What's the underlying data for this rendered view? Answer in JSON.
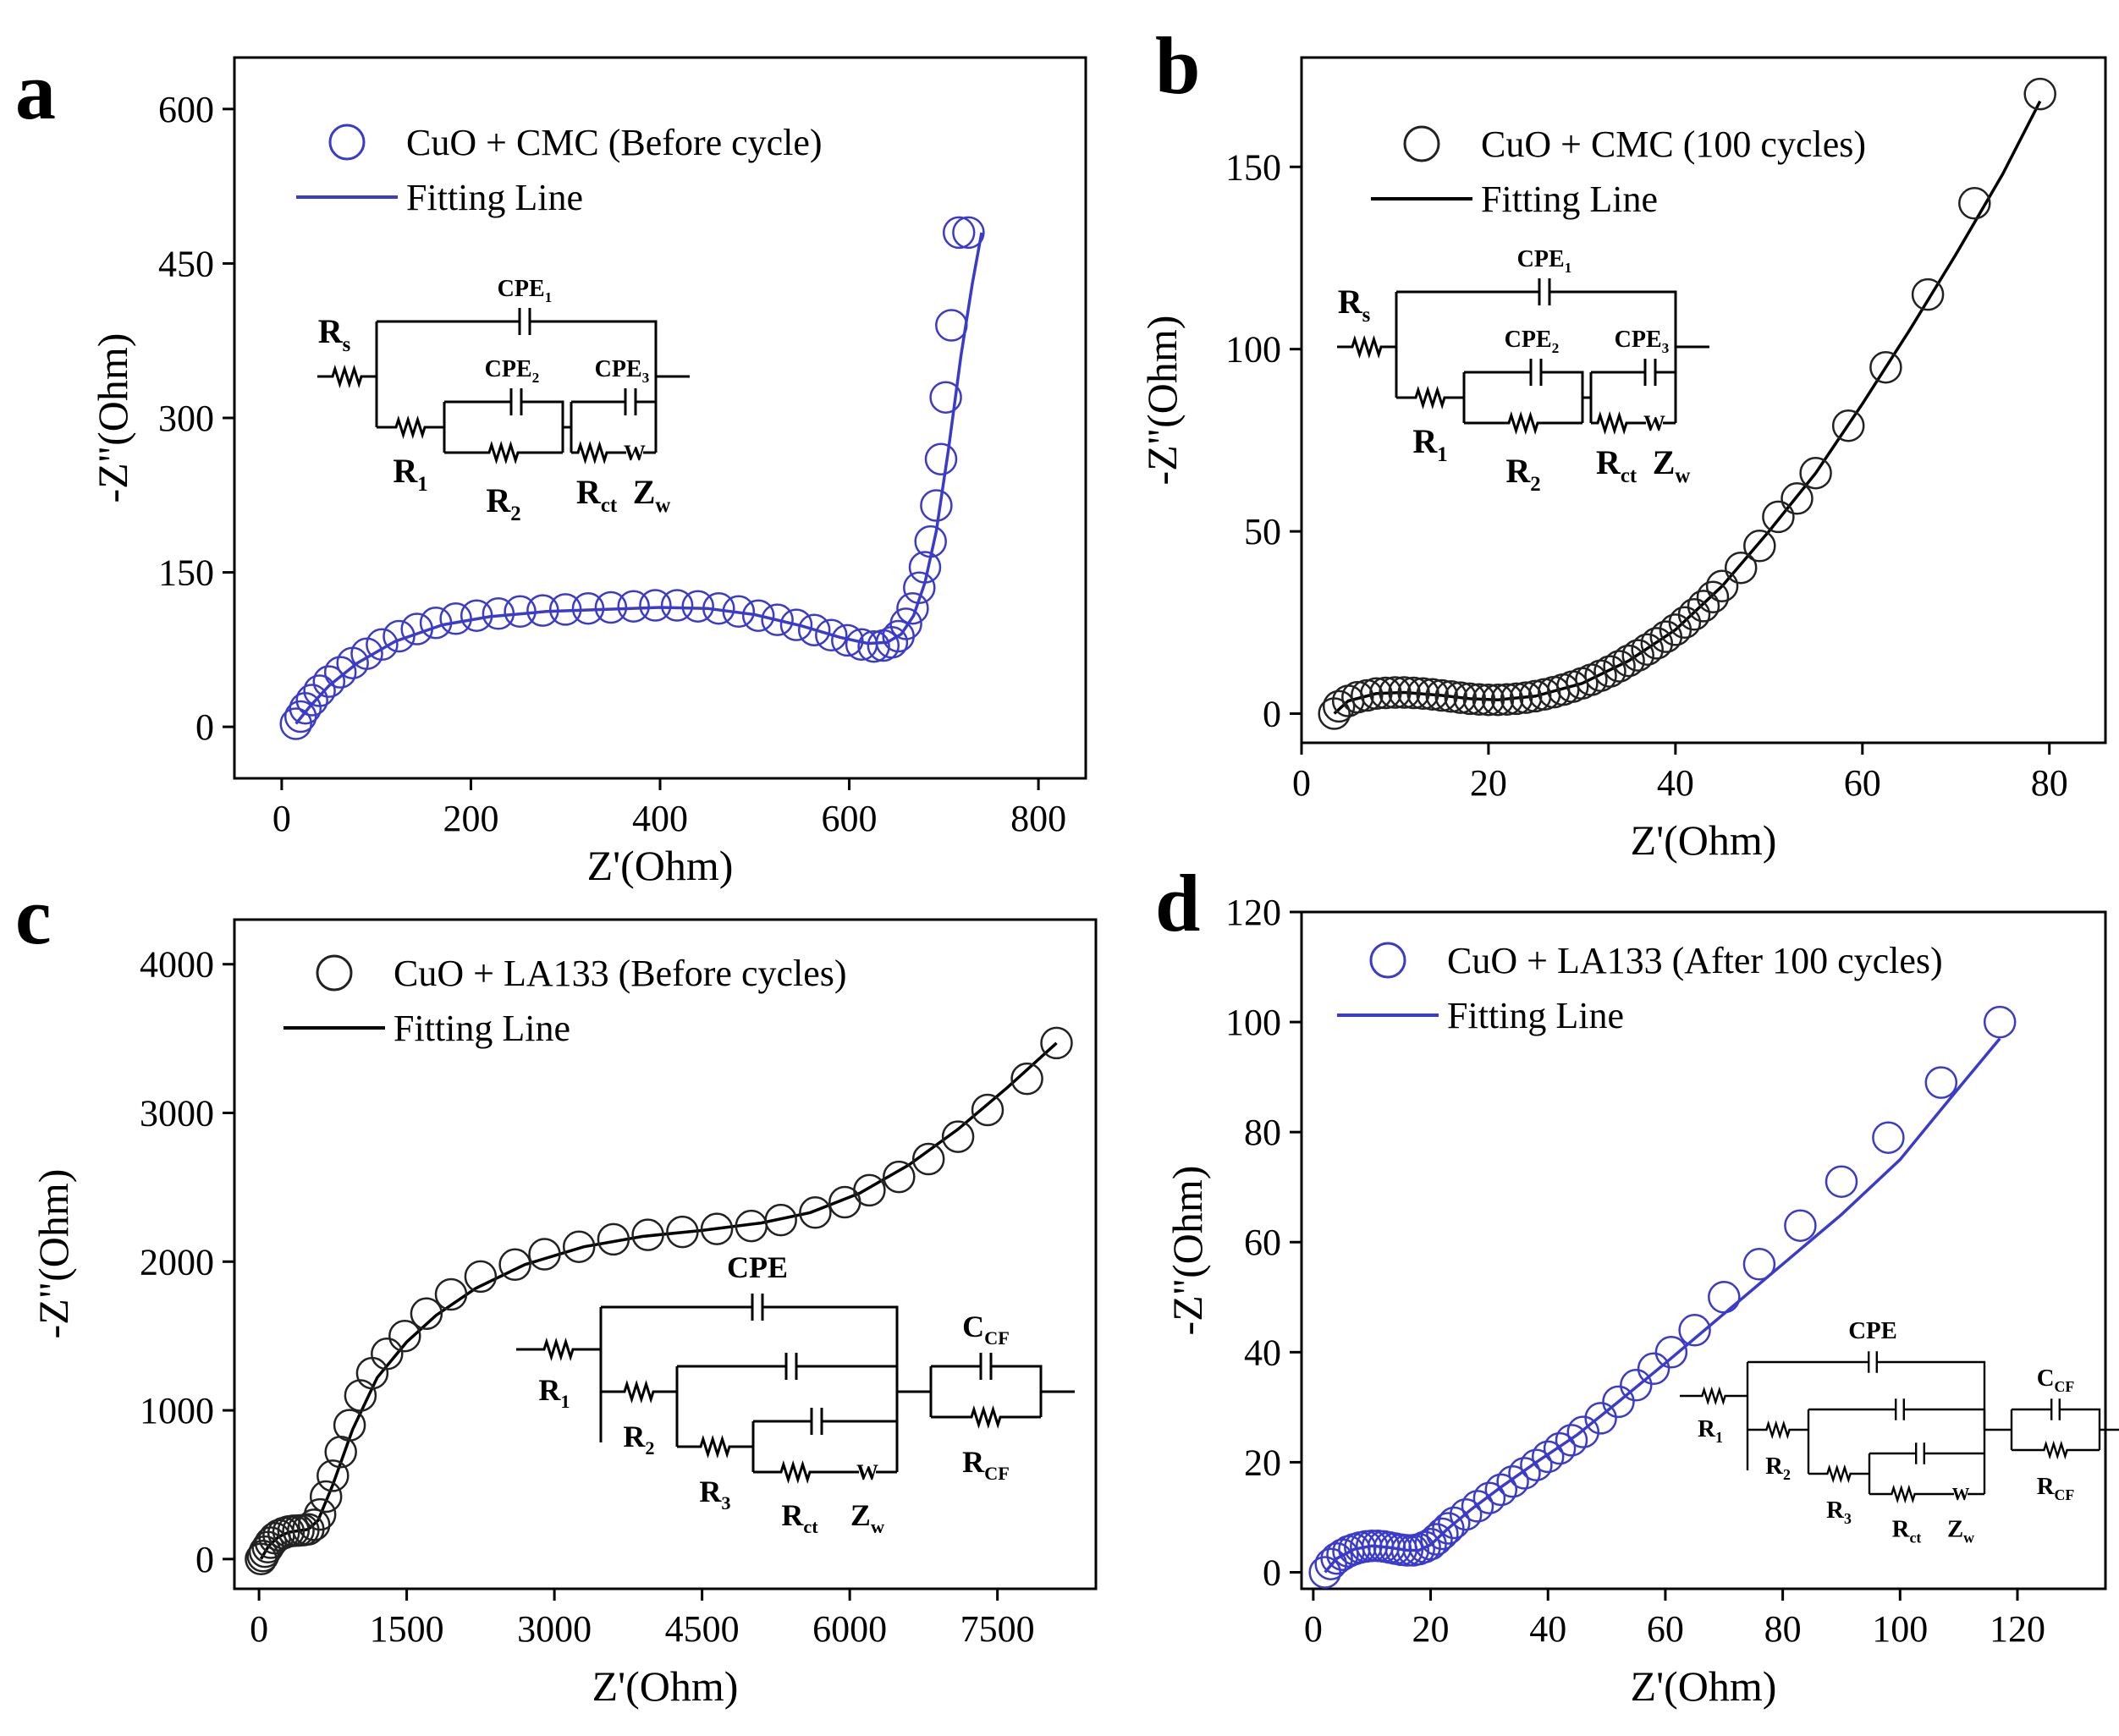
{
  "chart_data": [
    {
      "panel": "a",
      "type": "scatter",
      "title": "",
      "xlabel": "Z'(Ohm)",
      "ylabel": "-Z\"(Ohm)",
      "xlim": [
        -50,
        850
      ],
      "ylim": [
        -50,
        650
      ],
      "xticks": [
        "0",
        "200",
        "400",
        "600",
        "800"
      ],
      "yticks": [
        "0",
        "150",
        "300",
        "450",
        "600"
      ],
      "color": "#3a3acc",
      "legend": [
        "CuO + CMC (Before cycle)",
        "Fitting Line"
      ],
      "series": [
        {
          "name": "CuO + CMC (Before cycle)",
          "kind": "markers",
          "x": [
            15,
            20,
            25,
            32,
            40,
            50,
            62,
            75,
            90,
            106,
            124,
            143,
            163,
            184,
            206,
            229,
            252,
            276,
            300,
            324,
            348,
            372,
            395,
            418,
            440,
            462,
            483,
            504,
            524,
            544,
            563,
            581,
            598,
            613,
            626,
            636,
            645,
            652,
            660,
            667,
            674,
            680,
            686,
            692,
            697,
            702,
            708,
            716,
            726
          ],
          "y": [
            3,
            10,
            18,
            26,
            35,
            44,
            53,
            62,
            71,
            80,
            88,
            95,
            101,
            105,
            108,
            110,
            112,
            113,
            114,
            115,
            116,
            117,
            118,
            118,
            117,
            115,
            112,
            108,
            104,
            99,
            94,
            89,
            84,
            80,
            78,
            79,
            82,
            88,
            100,
            115,
            135,
            155,
            180,
            215,
            260,
            320,
            390,
            480,
            480
          ]
        },
        {
          "name": "Fitting Line",
          "kind": "line",
          "x": [
            15,
            30,
            50,
            80,
            120,
            170,
            220,
            280,
            340,
            400,
            450,
            500,
            550,
            590,
            620,
            640,
            655,
            668,
            680,
            692,
            705,
            718,
            730,
            740
          ],
          "y": [
            3,
            20,
            40,
            62,
            83,
            99,
            107,
            112,
            114,
            116,
            115,
            109,
            98,
            87,
            81,
            82,
            90,
            108,
            140,
            190,
            270,
            360,
            430,
            480
          ]
        }
      ],
      "inset": {
        "labels": [
          "CPE1",
          "CPE2",
          "CPE3",
          "Rs",
          "R1",
          "R2",
          "Rct",
          "Zw"
        ]
      }
    },
    {
      "panel": "b",
      "type": "scatter",
      "title": "",
      "xlabel": "Z'(Ohm)",
      "ylabel": "-Z\"(Ohm)",
      "xlim": [
        0,
        86
      ],
      "ylim": [
        -8,
        180
      ],
      "xticks": [
        "0",
        "20",
        "40",
        "60",
        "80"
      ],
      "yticks": [
        "0",
        "50",
        "100",
        "150"
      ],
      "color": "#000000",
      "legend": [
        "CuO + CMC (100 cycles)",
        "Fitting Line"
      ],
      "series": [
        {
          "name": "CuO + CMC (100 cycles)",
          "kind": "markers",
          "x": [
            3.5,
            4,
            5,
            6,
            7,
            8,
            9,
            10,
            11,
            12,
            13,
            14,
            15,
            16,
            17,
            18,
            19,
            20,
            21,
            22,
            23,
            24,
            25,
            26,
            27,
            28,
            29,
            30,
            31,
            32,
            33,
            34,
            35,
            36,
            37,
            38,
            39,
            40,
            41,
            42,
            43,
            44,
            45,
            47,
            49,
            51,
            53,
            55,
            58.5,
            62.5,
            67,
            72,
            79
          ],
          "y": [
            0,
            2,
            3.5,
            4.5,
            5,
            5.5,
            5.7,
            5.8,
            5.8,
            5.7,
            5.5,
            5.3,
            5,
            4.7,
            4.4,
            4.1,
            3.9,
            3.8,
            3.8,
            3.9,
            4.1,
            4.4,
            4.8,
            5.3,
            5.9,
            6.6,
            7.4,
            8.3,
            9.3,
            10.4,
            11.6,
            13,
            14.5,
            16,
            17.6,
            19.3,
            21.1,
            23,
            25,
            27.2,
            29.5,
            32,
            35,
            40,
            46,
            54,
            59,
            66,
            79,
            95,
            115,
            140,
            170
          ]
        },
        {
          "name": "Fitting Line",
          "kind": "line",
          "x": [
            3.5,
            5,
            8,
            11,
            15,
            18,
            21,
            25,
            30,
            35,
            40,
            45,
            50,
            55,
            60,
            65,
            70,
            75,
            79
          ],
          "y": [
            0,
            3.5,
            5.5,
            5.8,
            5,
            4.1,
            3.8,
            4.8,
            8.3,
            14.5,
            23,
            35,
            50,
            66,
            85,
            105,
            126,
            148,
            168
          ]
        }
      ],
      "inset": {
        "labels": [
          "CPE1",
          "CPE2",
          "CPE3",
          "Rs",
          "R1",
          "R2",
          "Rct",
          "Zw"
        ]
      }
    },
    {
      "panel": "c",
      "type": "scatter",
      "title": "",
      "xlabel": "Z'(Ohm)",
      "ylabel": "-Z\"(Ohm)",
      "xlim": [
        -250,
        8500
      ],
      "ylim": [
        -200,
        4300
      ],
      "xticks": [
        "0",
        "1500",
        "3000",
        "4500",
        "6000",
        "7500"
      ],
      "yticks": [
        "0",
        "1000",
        "2000",
        "3000",
        "4000"
      ],
      "color": "#000000",
      "legend": [
        "CuO + LA133 (Before cycles)",
        "Fitting Line"
      ],
      "series": [
        {
          "name": "CuO + LA133 (Before cycles)",
          "kind": "markers",
          "x": [
            20,
            40,
            60,
            90,
            120,
            160,
            200,
            250,
            300,
            350,
            400,
            450,
            500,
            560,
            620,
            680,
            750,
            830,
            920,
            1030,
            1150,
            1300,
            1480,
            1700,
            1950,
            2250,
            2600,
            2900,
            3250,
            3600,
            3950,
            4300,
            4650,
            5000,
            5300,
            5650,
            5950,
            6200,
            6500,
            6800,
            7100,
            7400,
            7800,
            8100
          ],
          "y": [
            0,
            20,
            50,
            80,
            110,
            140,
            160,
            175,
            185,
            190,
            192,
            195,
            200,
            230,
            300,
            420,
            560,
            720,
            900,
            1100,
            1250,
            1380,
            1500,
            1650,
            1780,
            1900,
            1980,
            2050,
            2100,
            2150,
            2180,
            2200,
            2220,
            2240,
            2280,
            2330,
            2400,
            2480,
            2570,
            2690,
            2840,
            3020,
            3230,
            3470
          ]
        },
        {
          "name": "Fitting Line",
          "kind": "line",
          "x": [
            20,
            100,
            200,
            300,
            400,
            500,
            600,
            750,
            950,
            1200,
            1500,
            1800,
            2200,
            2700,
            3300,
            3900,
            4500,
            5100,
            5600,
            6100,
            6600,
            7100,
            7600,
            8100
          ],
          "y": [
            0,
            90,
            150,
            180,
            190,
            200,
            260,
            500,
            870,
            1220,
            1460,
            1640,
            1820,
            1980,
            2100,
            2170,
            2210,
            2260,
            2330,
            2460,
            2650,
            2890,
            3170,
            3470
          ]
        }
      ],
      "inset": {
        "labels": [
          "CPE",
          "CCF",
          "R1",
          "R2",
          "R3",
          "Rct",
          "Zw",
          "RCF"
        ]
      }
    },
    {
      "panel": "d",
      "type": "scatter",
      "title": "",
      "xlabel": "Z'(Ohm)",
      "ylabel": "-Z\"(Ohm)",
      "xlim": [
        -2,
        135
      ],
      "ylim": [
        -3,
        120
      ],
      "xticks": [
        "0",
        "20",
        "40",
        "60",
        "80",
        "100",
        "120"
      ],
      "yticks": [
        "0",
        "20",
        "40",
        "60",
        "80",
        "100",
        "120"
      ],
      "color": "#3a3acc",
      "legend": [
        "CuO + LA133 (After 100 cycles)",
        "Fitting Line"
      ],
      "series": [
        {
          "name": "CuO + LA133 (After 100 cycles)",
          "kind": "markers",
          "x": [
            2,
            3,
            4,
            5,
            6,
            7,
            8,
            9,
            10,
            11,
            12,
            13,
            14,
            15,
            16,
            17,
            18,
            19,
            20,
            21,
            22,
            23,
            24,
            26,
            28,
            30,
            32,
            34,
            36,
            38,
            40,
            42,
            44,
            46,
            49,
            52,
            55,
            58,
            61,
            65,
            70,
            76,
            83,
            90,
            98,
            107,
            117
          ],
          "y": [
            0,
            1.5,
            2.5,
            3.2,
            3.8,
            4.2,
            4.5,
            4.7,
            4.8,
            4.8,
            4.7,
            4.5,
            4.3,
            4.1,
            4,
            4,
            4.2,
            4.6,
            5.1,
            6,
            7,
            8,
            9,
            10.5,
            12,
            13.5,
            15,
            16.5,
            18,
            19.5,
            21,
            22.5,
            24,
            25.5,
            28,
            31,
            34,
            37,
            40,
            44,
            50,
            56,
            63,
            71,
            79,
            89,
            100
          ]
        },
        {
          "name": "Fitting Line",
          "kind": "line",
          "x": [
            2,
            4,
            7,
            10,
            13,
            16,
            18,
            20,
            23,
            27,
            32,
            38,
            45,
            52,
            60,
            70,
            80,
            90,
            100,
            110,
            117
          ],
          "y": [
            0,
            2.5,
            4.2,
            4.8,
            4.5,
            4,
            4,
            5,
            8,
            11.5,
            15.5,
            20,
            25,
            31,
            38,
            47,
            56,
            65,
            75,
            88,
            97
          ]
        }
      ],
      "inset": {
        "labels": [
          "CPE",
          "CCF",
          "R1",
          "R2",
          "R3",
          "Rct",
          "Zw",
          "RCF"
        ]
      }
    }
  ]
}
